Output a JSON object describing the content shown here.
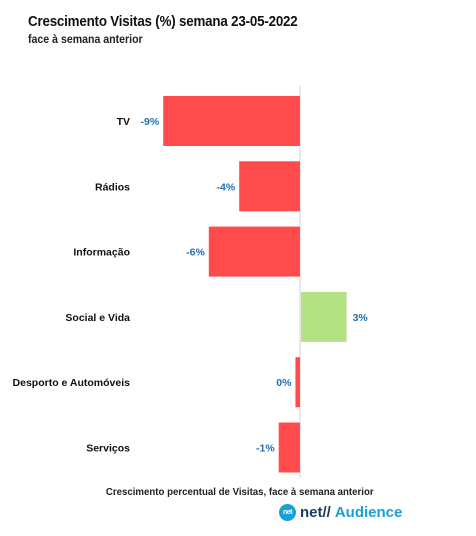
{
  "header": {
    "title": "Crescimento Visitas (%) semana 23-05-2022",
    "subtitle": "face à semana anterior"
  },
  "chart_data": {
    "type": "bar",
    "orientation": "horizontal",
    "title": "Crescimento Visitas (%) semana 23-05-2022",
    "subtitle": "face à semana anterior",
    "xlabel": "Crescimento percentual de Visitas, face à semana anterior",
    "ylabel": "",
    "categories": [
      "TV",
      "Rádios",
      "Informação",
      "Social e Vida",
      "Desporto e Automóveis",
      "Serviços"
    ],
    "values": [
      -9,
      -4,
      -6,
      3,
      -0.3,
      -1.4
    ],
    "data_labels": [
      "-9%",
      "-4%",
      "-6%",
      "3%",
      "0%",
      "-1%"
    ],
    "xlim": [
      -9,
      5
    ],
    "grid": false,
    "legend": "none",
    "colors": {
      "negative": "#ff4b4b",
      "positive": "#b3e183",
      "value_label": "#1f6fb4",
      "zero_line": "#d0d0d0"
    }
  },
  "branding": {
    "badge": "net",
    "name_part1": "net//",
    "name_part2": "Audience"
  }
}
